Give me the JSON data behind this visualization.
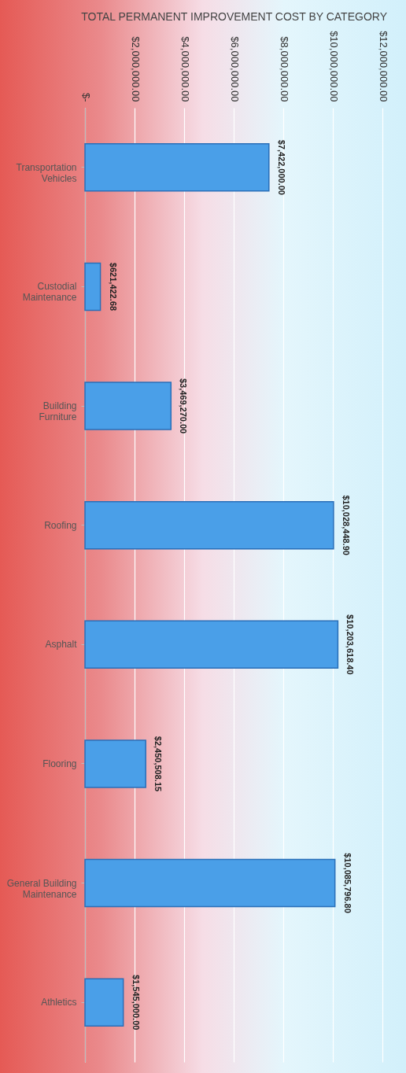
{
  "chart_data": {
    "type": "bar",
    "orientation": "horizontal",
    "title": "TOTAL PERMANENT IMPROVEMENT COST BY CATEGORY",
    "categories": [
      "Transportation Vehicles",
      "Custodial Maintenance",
      "Building Furniture",
      "Roofing",
      "Asphalt",
      "Flooring",
      "General Building Maintenance",
      "Athletics"
    ],
    "values": [
      7422000.0,
      621422.68,
      3469270.0,
      10028448.9,
      10203618.4,
      2450508.15,
      10085796.8,
      1545000.0
    ],
    "color": "#4a9fe8",
    "xlim": [
      0,
      12000000
    ],
    "xticks": [
      {
        "value": 0,
        "label": "$-"
      },
      {
        "value": 2000000,
        "label": "$2,000,000.00"
      },
      {
        "value": 4000000,
        "label": "$4,000,000.00"
      },
      {
        "value": 6000000,
        "label": "$6,000,000.00"
      },
      {
        "value": 8000000,
        "label": "$8,000,000.00"
      },
      {
        "value": 10000000,
        "label": "$10,000,000.00"
      },
      {
        "value": 12000000,
        "label": "$12,000,000.00"
      }
    ],
    "value_labels": [
      "$7,422,000.00",
      "$621,422.68",
      "$3,469,270.00",
      "$10,028,448.90",
      "$10,203,618.40",
      "$2,450,508.15",
      "$10,085,796.80",
      "$1,545,000.00"
    ],
    "grid": "x"
  }
}
